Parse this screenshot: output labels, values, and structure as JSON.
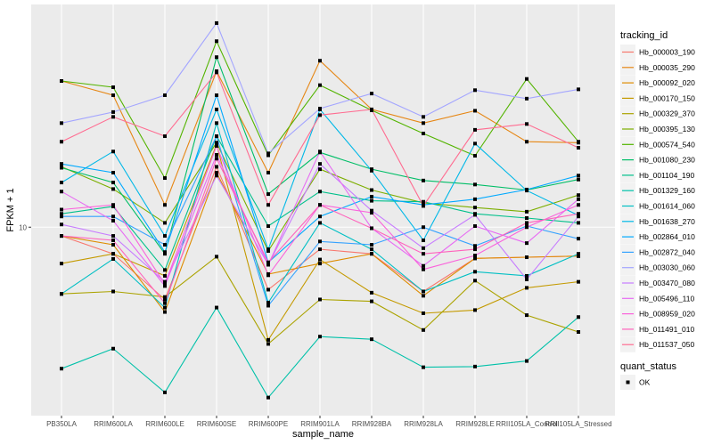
{
  "chart_data": {
    "type": "line",
    "title": "",
    "xlabel": "sample_name",
    "ylabel": "FPKM + 1",
    "y_scale": "log10",
    "y_ticks": [
      10
    ],
    "y_tick_labels": [
      "10"
    ],
    "ylim": [
      7.06,
      15.09
    ],
    "grid": true,
    "legend_position": "right",
    "categories": [
      "PB350LA",
      "RRIM600LA",
      "RRIM600LE",
      "RRIM600SE",
      "RRIM600PE",
      "RRIM901LA",
      "RRIM928BA",
      "RRIM928LA",
      "RRIM928LE",
      "RRII105LA_Control",
      "RRII105LA_Stressed"
    ],
    "tick_labels_rendered": [
      "PB350LA",
      "RRIM600LA",
      "RRIM600LE",
      "RRIM600SE",
      "RRIM600PE",
      "RRIM901LA",
      "RRIM928BA",
      "RRIM928LA",
      "RRIM928LE",
      "RRII105LA_Control",
      "RRII105LA_Stressed"
    ],
    "color_legend_title": "tracking_id",
    "shape_legend_title": "quant_status",
    "shape_legend_entries": [
      {
        "label": "OK",
        "shape": "square"
      }
    ],
    "series": [
      {
        "name": "Hb_000003_190",
        "color": "#F8766D",
        "values": [
          9.84,
          9.52,
          8.75,
          11.18,
          8.91,
          9.6,
          9.52,
          8.88,
          9.44,
          9.46,
          9.48
        ]
      },
      {
        "name": "Hb_000035_290",
        "color": "#E68613",
        "values": [
          13.1,
          12.76,
          10.42,
          13.34,
          11.06,
          13.6,
          12.43,
          12.12,
          12.4,
          11.71,
          11.69
        ]
      },
      {
        "name": "Hb_000092_020",
        "color": "#DE8C00",
        "values": [
          9.84,
          9.68,
          8.55,
          11.06,
          9.17,
          9.35,
          9.52,
          8.81,
          9.44,
          9.46,
          9.48
        ]
      },
      {
        "name": "Hb_000170_150",
        "color": "#C49A00",
        "values": [
          9.35,
          9.52,
          9.14,
          11.65,
          8.12,
          9.42,
          8.86,
          8.53,
          8.58,
          8.94,
          9.04
        ]
      },
      {
        "name": "Hb_000329_370",
        "color": "#ABA300",
        "values": [
          8.84,
          8.88,
          8.79,
          9.47,
          8.06,
          8.75,
          8.72,
          8.27,
          9.06,
          8.5,
          8.24
        ]
      },
      {
        "name": "Hb_000395_130",
        "color": "#7CAE00",
        "values": [
          11.18,
          10.73,
          10.08,
          11.69,
          9.57,
          11.13,
          10.71,
          10.46,
          10.37,
          10.29,
          10.61
        ]
      },
      {
        "name": "Hb_000574_540",
        "color": "#53B400",
        "values": [
          13.1,
          12.95,
          10.95,
          14.1,
          11.42,
          13.0,
          12.41,
          11.89,
          11.41,
          13.15,
          11.71
        ]
      },
      {
        "name": "Hb_001080_230",
        "color": "#00BE67",
        "values": [
          11.16,
          10.86,
          9.52,
          13.69,
          10.63,
          11.48,
          11.13,
          10.9,
          10.82,
          10.71,
          10.92
        ]
      },
      {
        "name": "Hb_001104_190",
        "color": "#00C08B",
        "values": [
          10.25,
          10.39,
          9.24,
          11.83,
          10.02,
          10.68,
          10.5,
          10.48,
          10.25,
          10.17,
          10.08
        ]
      },
      {
        "name": "Hb_001329_160",
        "color": "#00C1A9",
        "values": [
          7.7,
          7.99,
          7.37,
          8.62,
          7.3,
          8.17,
          8.13,
          7.72,
          7.73,
          7.81,
          8.47
        ]
      },
      {
        "name": "Hb_001614_060",
        "color": "#00BFC4",
        "values": [
          8.84,
          9.43,
          8.62,
          12.12,
          8.7,
          10.08,
          9.6,
          8.88,
          9.21,
          9.14,
          9.52
        ]
      },
      {
        "name": "Hb_001638_270",
        "color": "#00B8E7",
        "values": [
          10.86,
          11.5,
          9.84,
          12.43,
          9.6,
          12.43,
          11.1,
          9.76,
          11.67,
          10.7,
          10.22
        ]
      },
      {
        "name": "Hb_002864_010",
        "color": "#00A9FF",
        "values": [
          11.24,
          11.06,
          9.55,
          12.76,
          9.37,
          10.2,
          10.58,
          10.42,
          10.53,
          10.72,
          11.0
        ]
      },
      {
        "name": "Hb_002872_040",
        "color": "#35A2FF",
        "values": [
          10.2,
          10.2,
          9.68,
          11.83,
          8.65,
          9.74,
          9.68,
          10.0,
          9.66,
          10.02,
          9.79
        ]
      },
      {
        "name": "Hb_003030_060",
        "color": "#A3A5FF",
        "values": [
          12.12,
          12.37,
          12.76,
          14.58,
          11.46,
          12.45,
          12.8,
          12.26,
          12.88,
          12.68,
          12.9
        ]
      },
      {
        "name": "Hb_003470_080",
        "color": "#C77CFF",
        "values": [
          10.05,
          9.84,
          9.04,
          11.0,
          9.33,
          11.24,
          10.31,
          9.62,
          10.23,
          9.08,
          10.2
        ]
      },
      {
        "name": "Hb_005496_110",
        "color": "#E76BF3",
        "values": [
          10.68,
          10.12,
          8.97,
          11.43,
          9.33,
          11.5,
          9.98,
          9.31,
          10.02,
          9.71,
          10.53
        ]
      },
      {
        "name": "Hb_008959_020",
        "color": "#FA62DB",
        "values": [
          10.33,
          10.42,
          9.0,
          11.62,
          9.15,
          10.42,
          10.27,
          9.25,
          9.49,
          10.0,
          10.42
        ]
      },
      {
        "name": "Hb_011491_010",
        "color": "#FF62BC",
        "values": [
          9.84,
          9.76,
          8.69,
          11.35,
          9.37,
          10.42,
          9.98,
          9.52,
          9.6,
          10.08,
          10.25
        ]
      },
      {
        "name": "Hb_011537_050",
        "color": "#FF6C91",
        "values": [
          11.71,
          12.26,
          11.83,
          13.31,
          10.42,
          12.3,
          12.43,
          10.4,
          11.97,
          12.1,
          11.58
        ]
      }
    ]
  }
}
